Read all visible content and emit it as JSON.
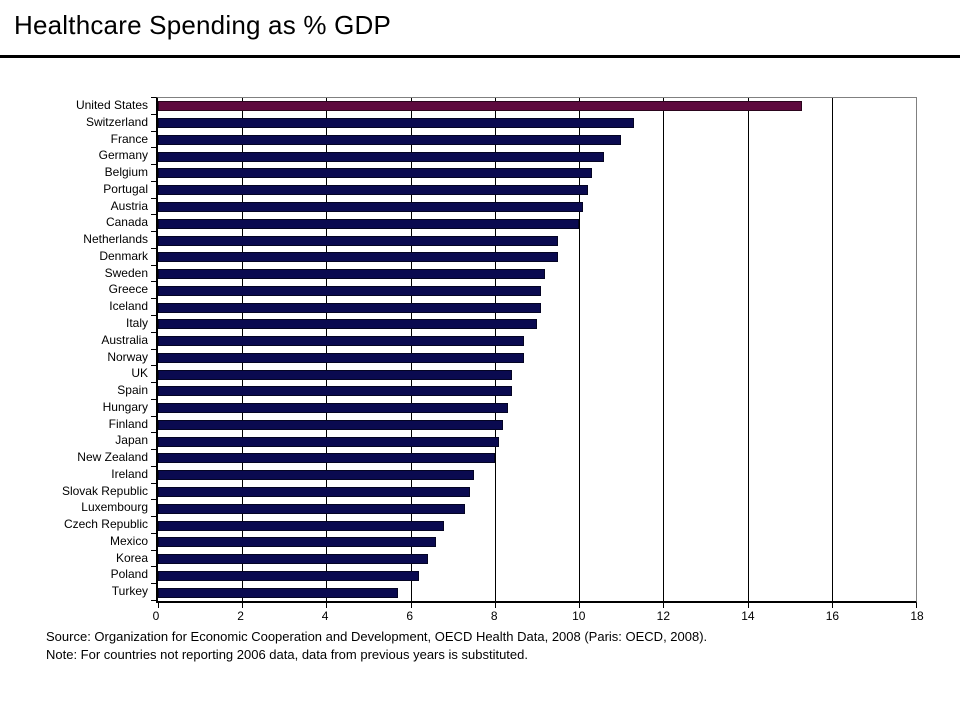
{
  "slide": {
    "title": "Healthcare Spending as % GDP",
    "footer": {
      "source": "Source: Organization for Economic Cooperation and Development, OECD Health Data, 2008 (Paris: OECD, 2008).",
      "note": "Note: For countries not reporting 2006 data, data from previous years is substituted."
    }
  },
  "colors": {
    "highlight_bar": "#5E0A3E",
    "bar": "#0A0A50",
    "gridline": "#000000",
    "plot_border": "#808080",
    "axis": "#000000"
  },
  "chart_data": {
    "type": "bar",
    "orientation": "horizontal",
    "title": "Healthcare Spending as % GDP",
    "xlabel": "",
    "ylabel": "",
    "xlim": [
      0,
      18
    ],
    "x_ticks": [
      0,
      2,
      4,
      6,
      8,
      10,
      12,
      14,
      16,
      18
    ],
    "grid": true,
    "legend": "none",
    "highlight_category": "United States",
    "categories": [
      "United States",
      "Switzerland",
      "France",
      "Germany",
      "Belgium",
      "Portugal",
      "Austria",
      "Canada",
      "Netherlands",
      "Denmark",
      "Sweden",
      "Greece",
      "Iceland",
      "Italy",
      "Australia",
      "Norway",
      "UK",
      "Spain",
      "Hungary",
      "Finland",
      "Japan",
      "New Zealand",
      "Ireland",
      "Slovak Republic",
      "Luxembourg",
      "Czech Republic",
      "Mexico",
      "Korea",
      "Poland",
      "Turkey"
    ],
    "values": [
      15.3,
      11.3,
      11.0,
      10.6,
      10.3,
      10.2,
      10.1,
      10.0,
      9.5,
      9.5,
      9.2,
      9.1,
      9.1,
      9.0,
      8.7,
      8.7,
      8.4,
      8.4,
      8.3,
      8.2,
      8.1,
      8.0,
      7.5,
      7.4,
      7.3,
      6.8,
      6.6,
      6.4,
      6.2,
      5.7
    ]
  }
}
